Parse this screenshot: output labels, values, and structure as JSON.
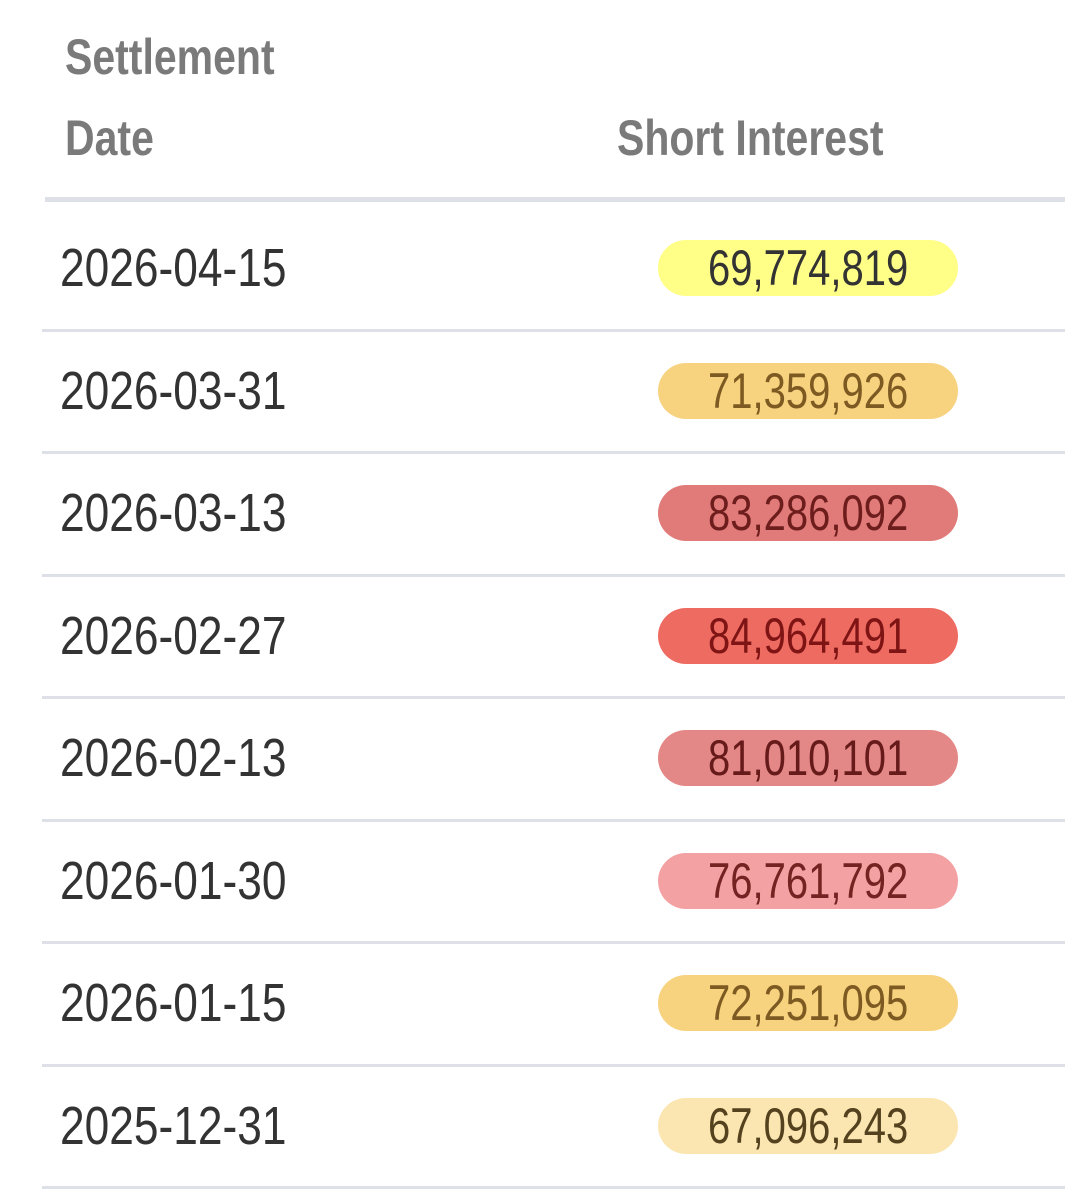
{
  "header": {
    "date": [
      "Settlement",
      "Date"
    ],
    "short_interest": "Short Interest"
  },
  "table": {
    "rows": [
      {
        "date": "2026-04-15",
        "short_interest": "69,774,819",
        "pill_color": "#ffff88",
        "text_color": "#333333"
      },
      {
        "date": "2026-03-31",
        "short_interest": "71,359,926",
        "pill_color": "#f7d27f",
        "text_color": "#7d5a22"
      },
      {
        "date": "2026-03-13",
        "short_interest": "83,286,092",
        "pill_color": "#e07b79",
        "text_color": "#6e1d1d"
      },
      {
        "date": "2026-02-27",
        "short_interest": "84,964,491",
        "pill_color": "#ee6b62",
        "text_color": "#7e1414"
      },
      {
        "date": "2026-02-13",
        "short_interest": "81,010,101",
        "pill_color": "#e38787",
        "text_color": "#661a1a"
      },
      {
        "date": "2026-01-30",
        "short_interest": "76,761,792",
        "pill_color": "#f4a1a3",
        "text_color": "#742222"
      },
      {
        "date": "2026-01-15",
        "short_interest": "72,251,095",
        "pill_color": "#f7d27f",
        "text_color": "#7d5a22"
      },
      {
        "date": "2025-12-31",
        "short_interest": "67,096,243",
        "pill_color": "#fbe6b2",
        "text_color": "#54421f"
      }
    ]
  }
}
